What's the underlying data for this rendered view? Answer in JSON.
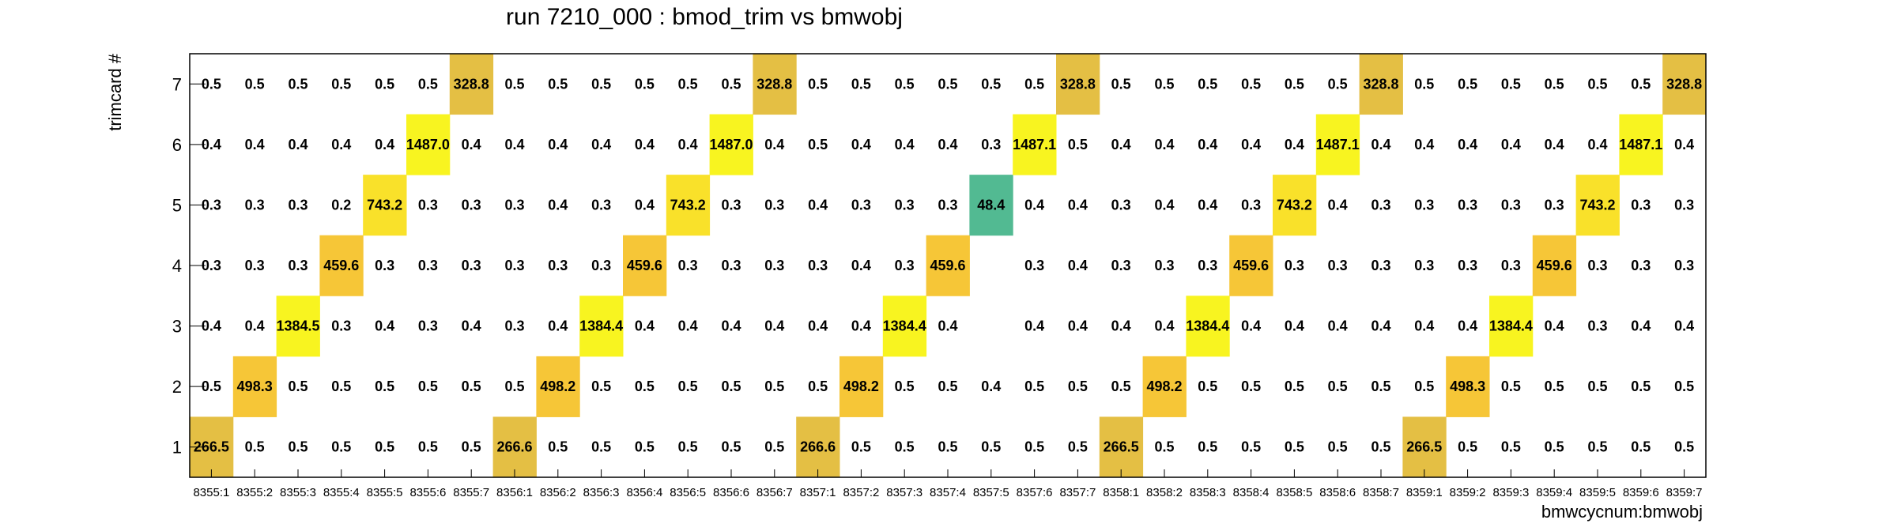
{
  "chart_data": {
    "type": "heatmap",
    "title": "run 7210_000 : bmod_trim vs bmwobj",
    "xlabel": "bmwcycnum:bmwobj",
    "ylabel": "trimcard #",
    "x_categories": [
      "8355:1",
      "8355:2",
      "8355:3",
      "8355:4",
      "8355:5",
      "8355:6",
      "8355:7",
      "8356:1",
      "8356:2",
      "8356:3",
      "8356:4",
      "8356:5",
      "8356:6",
      "8356:7",
      "8357:1",
      "8357:2",
      "8357:3",
      "8357:4",
      "8357:5",
      "8357:6",
      "8357:7",
      "8358:1",
      "8358:2",
      "8358:3",
      "8358:4",
      "8358:5",
      "8358:6",
      "8358:7",
      "8359:1",
      "8359:2",
      "8359:3",
      "8359:4",
      "8359:5",
      "8359:6",
      "8359:7"
    ],
    "y_categories": [
      "1",
      "2",
      "3",
      "4",
      "5",
      "6",
      "7"
    ],
    "rows": [
      {
        "y": "1",
        "labels": [
          "266.5",
          "0.5",
          "0.5",
          "0.5",
          "0.5",
          "0.5",
          "0.5",
          "266.6",
          "0.5",
          "0.5",
          "0.5",
          "0.5",
          "0.5",
          "0.5",
          "266.6",
          "0.5",
          "0.5",
          "0.5",
          "0.5",
          "0.5",
          "0.5",
          "266.5",
          "0.5",
          "0.5",
          "0.5",
          "0.5",
          "0.5",
          "0.5",
          "266.5",
          "0.5",
          "0.5",
          "0.5",
          "0.5",
          "0.5",
          "0.5"
        ]
      },
      {
        "y": "2",
        "labels": [
          "0.5",
          "498.3",
          "0.5",
          "0.5",
          "0.5",
          "0.5",
          "0.5",
          "0.5",
          "498.2",
          "0.5",
          "0.5",
          "0.5",
          "0.5",
          "0.5",
          "0.5",
          "498.2",
          "0.5",
          "0.5",
          "0.4",
          "0.5",
          "0.5",
          "0.5",
          "498.2",
          "0.5",
          "0.5",
          "0.5",
          "0.5",
          "0.5",
          "0.5",
          "498.3",
          "0.5",
          "0.5",
          "0.5",
          "0.5",
          "0.5"
        ]
      },
      {
        "y": "3",
        "labels": [
          "0.4",
          "0.4",
          "1384.5",
          "0.3",
          "0.4",
          "0.3",
          "0.4",
          "0.3",
          "0.4",
          "1384.4",
          "0.4",
          "0.4",
          "0.4",
          "0.4",
          "0.4",
          "0.4",
          "1384.4",
          "0.4",
          "",
          "0.4",
          "0.4",
          "0.4",
          "0.4",
          "1384.4",
          "0.4",
          "0.4",
          "0.4",
          "0.4",
          "0.4",
          "0.4",
          "1384.4",
          "0.4",
          "0.3",
          "0.4",
          "0.4"
        ]
      },
      {
        "y": "4",
        "labels": [
          "0.3",
          "0.3",
          "0.3",
          "459.6",
          "0.3",
          "0.3",
          "0.3",
          "0.3",
          "0.3",
          "0.3",
          "459.6",
          "0.3",
          "0.3",
          "0.3",
          "0.3",
          "0.4",
          "0.3",
          "459.6",
          "",
          "0.3",
          "0.4",
          "0.3",
          "0.3",
          "0.3",
          "459.6",
          "0.3",
          "0.3",
          "0.3",
          "0.3",
          "0.3",
          "0.3",
          "459.6",
          "0.3",
          "0.3",
          "0.3"
        ]
      },
      {
        "y": "5",
        "labels": [
          "0.3",
          "0.3",
          "0.3",
          "0.2",
          "743.2",
          "0.3",
          "0.3",
          "0.3",
          "0.4",
          "0.3",
          "0.4",
          "743.2",
          "0.3",
          "0.3",
          "0.4",
          "0.3",
          "0.3",
          "0.3",
          "48.4",
          "0.4",
          "0.4",
          "0.3",
          "0.4",
          "0.4",
          "0.3",
          "743.2",
          "0.4",
          "0.3",
          "0.3",
          "0.3",
          "0.3",
          "0.3",
          "743.2",
          "0.3",
          "0.3"
        ]
      },
      {
        "y": "6",
        "labels": [
          "0.4",
          "0.4",
          "0.4",
          "0.4",
          "0.4",
          "1487.0",
          "0.4",
          "0.4",
          "0.4",
          "0.4",
          "0.4",
          "0.4",
          "1487.0",
          "0.4",
          "0.5",
          "0.4",
          "0.4",
          "0.4",
          "0.3",
          "1487.1",
          "0.5",
          "0.4",
          "0.4",
          "0.4",
          "0.4",
          "0.4",
          "1487.1",
          "0.4",
          "0.4",
          "0.4",
          "0.4",
          "0.4",
          "0.4",
          "1487.1",
          "0.4"
        ]
      },
      {
        "y": "7",
        "labels": [
          "0.5",
          "0.5",
          "0.5",
          "0.5",
          "0.5",
          "0.5",
          "328.8",
          "0.5",
          "0.5",
          "0.5",
          "0.5",
          "0.5",
          "0.5",
          "328.8",
          "0.5",
          "0.5",
          "0.5",
          "0.5",
          "0.5",
          "0.5",
          "328.8",
          "0.5",
          "0.5",
          "0.5",
          "0.5",
          "0.5",
          "0.5",
          "328.8",
          "0.5",
          "0.5",
          "0.5",
          "0.5",
          "0.5",
          "0.5",
          "328.8"
        ]
      }
    ],
    "color_scale": [
      {
        "min": 1000,
        "color": "#f8f420"
      },
      {
        "min": 700,
        "color": "#f9e12a"
      },
      {
        "min": 400,
        "color": "#f6c637"
      },
      {
        "min": 200,
        "color": "#e4bf44"
      },
      {
        "min": 10,
        "color": "#52ba92"
      }
    ],
    "grid": false
  }
}
